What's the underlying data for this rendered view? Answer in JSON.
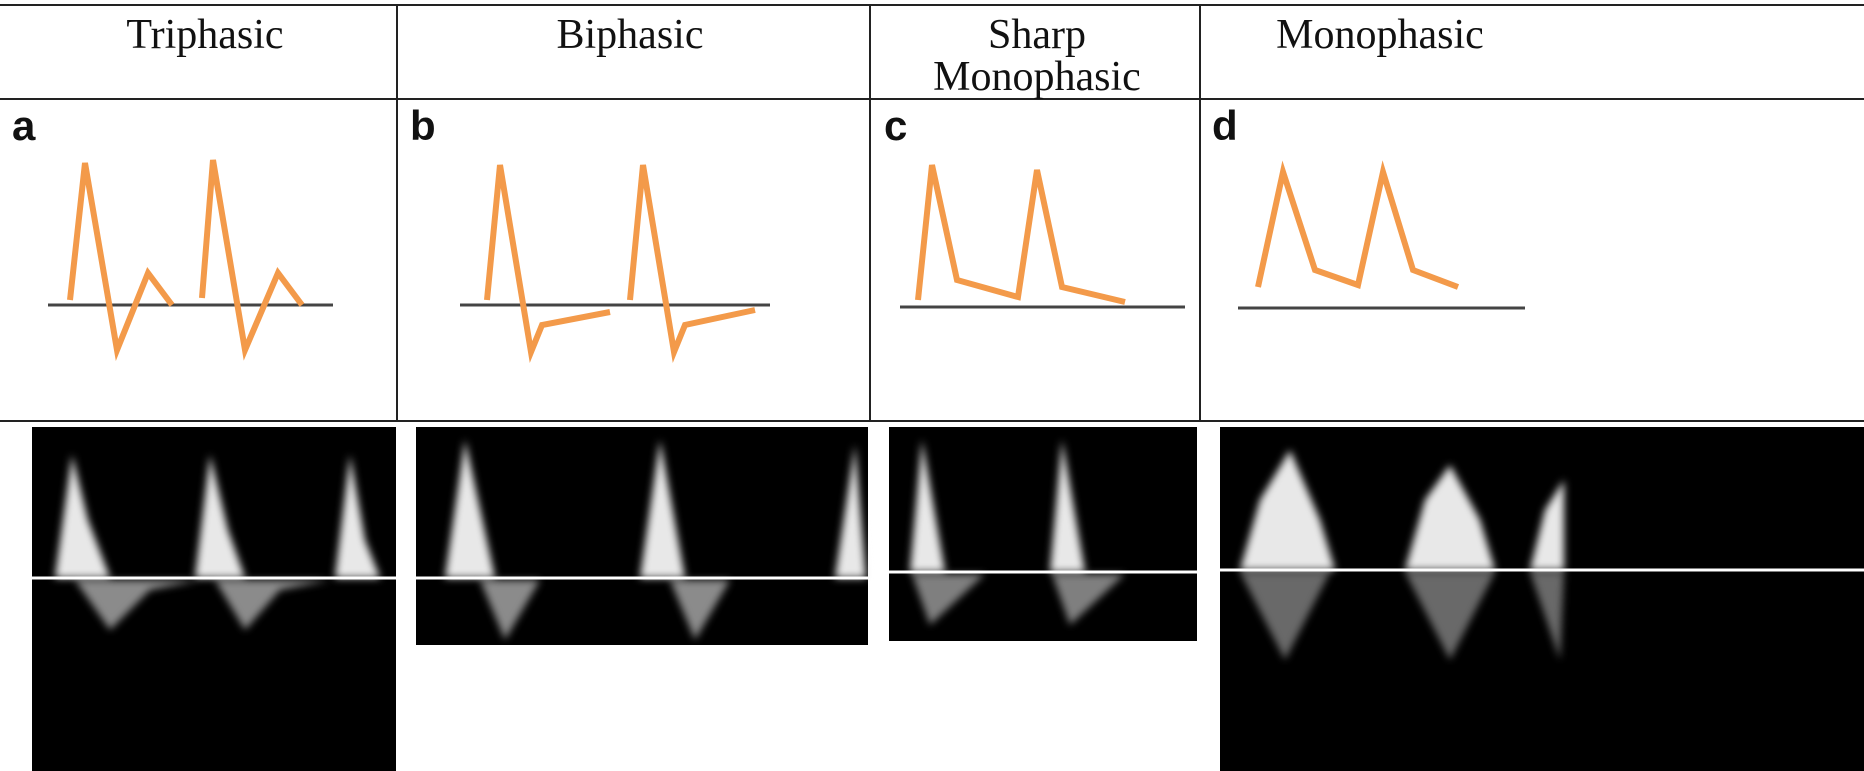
{
  "columns": [
    {
      "header": "Triphasic",
      "label": "a"
    },
    {
      "header": "Biphasic",
      "label": "b"
    },
    {
      "header": [
        "Sharp",
        "Monophasic"
      ],
      "label": "c"
    },
    {
      "header": "Monophasic",
      "label": "d"
    }
  ]
}
